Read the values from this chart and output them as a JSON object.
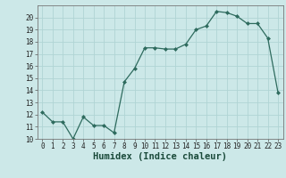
{
  "x": [
    0,
    1,
    2,
    3,
    4,
    5,
    6,
    7,
    8,
    9,
    10,
    11,
    12,
    13,
    14,
    15,
    16,
    17,
    18,
    19,
    20,
    21,
    22,
    23
  ],
  "y": [
    12.2,
    11.4,
    11.4,
    10.0,
    11.8,
    11.1,
    11.1,
    10.5,
    14.7,
    15.8,
    17.5,
    17.5,
    17.4,
    17.4,
    17.8,
    19.0,
    19.3,
    20.5,
    20.4,
    20.1,
    19.5,
    19.5,
    18.3,
    13.8
  ],
  "xlabel": "Humidex (Indice chaleur)",
  "ylim": [
    10,
    21
  ],
  "xlim": [
    -0.5,
    23.5
  ],
  "yticks": [
    10,
    11,
    12,
    13,
    14,
    15,
    16,
    17,
    18,
    19,
    20
  ],
  "xticks": [
    0,
    1,
    2,
    3,
    4,
    5,
    6,
    7,
    8,
    9,
    10,
    11,
    12,
    13,
    14,
    15,
    16,
    17,
    18,
    19,
    20,
    21,
    22,
    23
  ],
  "line_color": "#2e6b5e",
  "marker_color": "#2e6b5e",
  "bg_color": "#cce8e8",
  "grid_color_major": "#b0d4d4",
  "grid_color_minor": "#c8e4e4",
  "tick_fontsize": 5.5,
  "label_fontsize": 7.5
}
